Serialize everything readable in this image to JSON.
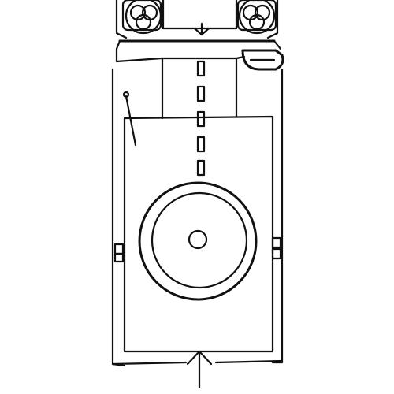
{
  "diagram": {
    "kind": "line-drawing",
    "colors": {
      "ink": "#111111",
      "background": "#ffffff"
    },
    "icons": {
      "left_wheel": "triple-circle-wheel-icon",
      "right_wheel": "triple-circle-wheel-icon",
      "top_arrow": "arrow-down-icon",
      "bottom_arrow": "arrow-up-icon",
      "antenna": "antenna-icon"
    },
    "labels": []
  }
}
